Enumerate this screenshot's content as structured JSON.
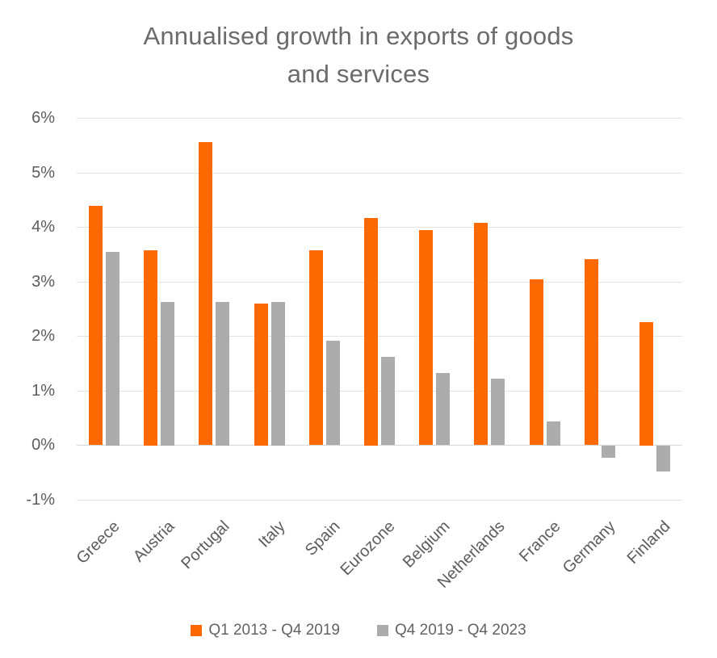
{
  "title": {
    "line1": "Annualised growth in exports of goods",
    "line2": "and services"
  },
  "colors": {
    "orange": "#FB6900",
    "gray": "#ACACAC",
    "gridline": "#E3E3E3",
    "axis_text": "#5C5C5C",
    "title_text": "#6B6B6B"
  },
  "chart_data": {
    "type": "bar",
    "title": "Annualised growth in exports of goods and services",
    "categories": [
      "Greece",
      "Austria",
      "Portugal",
      "Italy",
      "Spain",
      "Eurozone",
      "Belgium",
      "Netherlands",
      "France",
      "Germany",
      "Finland"
    ],
    "series": [
      {
        "name": "Q1 2013 - Q4 2019",
        "color": "#FB6900",
        "values": [
          4.38,
          3.58,
          5.55,
          2.6,
          3.57,
          4.17,
          3.94,
          4.07,
          3.04,
          3.41,
          2.26
        ]
      },
      {
        "name": "Q4 2019 - Q4 2023",
        "color": "#ACACAC",
        "values": [
          3.55,
          2.63,
          2.63,
          2.63,
          1.91,
          1.62,
          1.32,
          1.22,
          0.44,
          -0.22,
          -0.47
        ]
      }
    ],
    "y_axis": {
      "min": -1,
      "max": 6,
      "step": 1,
      "tick_suffix": "%",
      "ticks": [
        {
          "label": "6%",
          "value": 6
        },
        {
          "label": "5%",
          "value": 5
        },
        {
          "label": "4%",
          "value": 4
        },
        {
          "label": "3%",
          "value": 3
        },
        {
          "label": "2%",
          "value": 2
        },
        {
          "label": "1%",
          "value": 1
        },
        {
          "label": "0%",
          "value": 0
        },
        {
          "label": "-1%",
          "value": -1
        }
      ]
    },
    "xlabel": "",
    "ylabel": "",
    "grid": true,
    "legend_position": "bottom",
    "x_label_rotation_deg": -45
  }
}
